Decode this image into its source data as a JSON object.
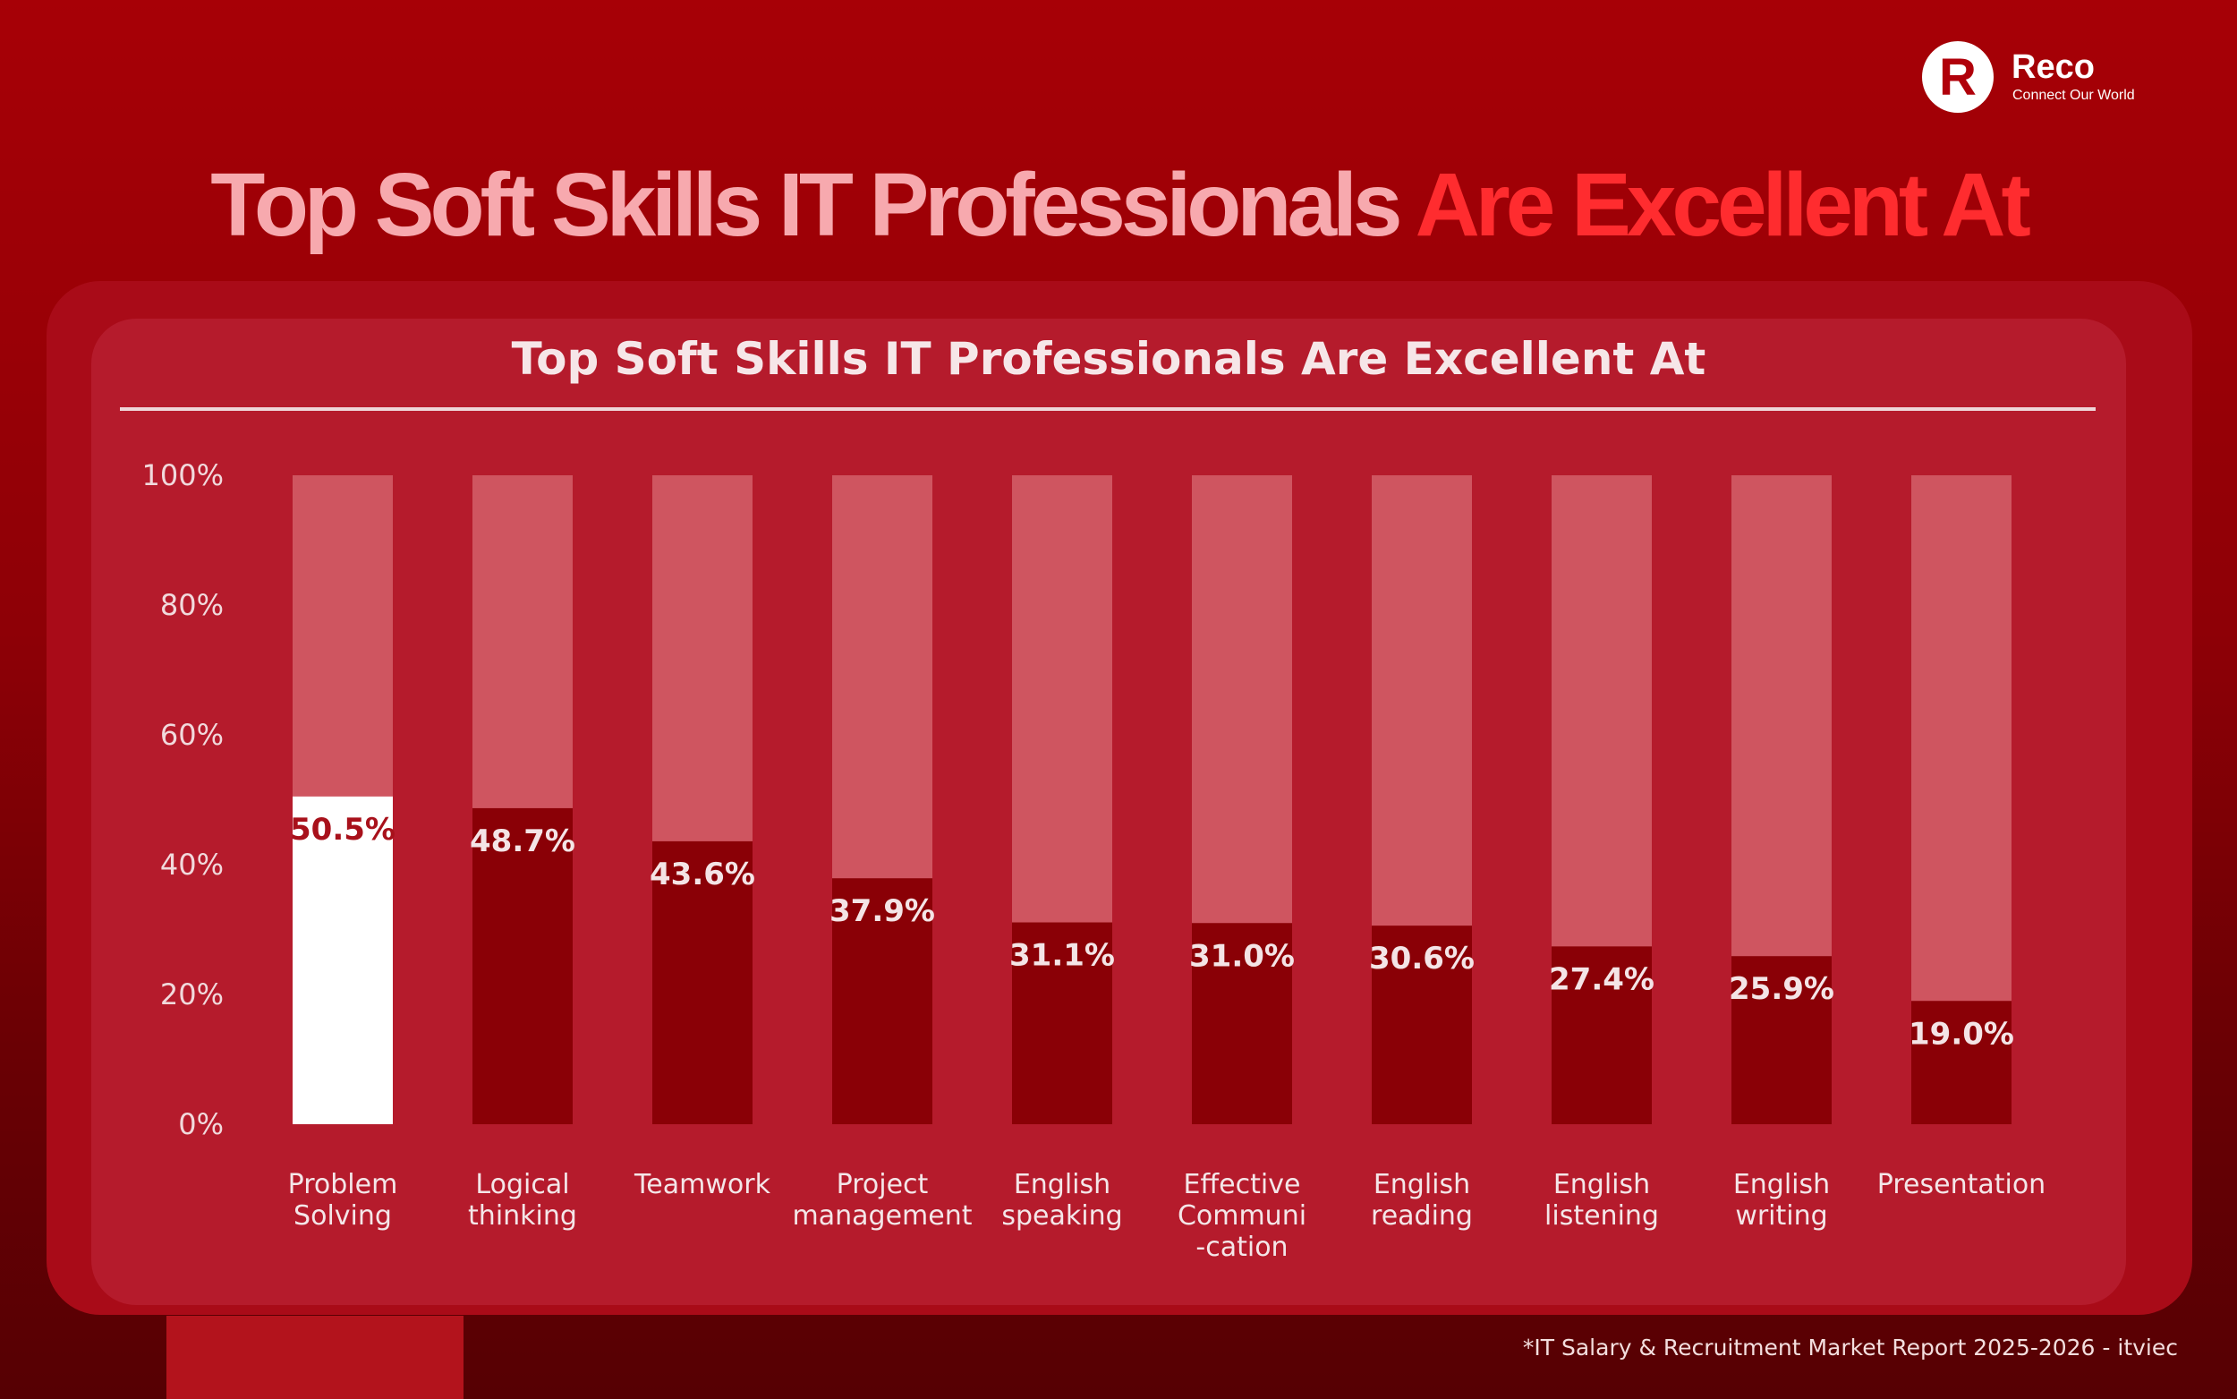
{
  "brand": {
    "mark": "R",
    "name": "Reco",
    "tagline": "Connect Our World"
  },
  "headline": {
    "part1": "Top Soft Skills IT Professionals",
    "part2": "Are Excellent At"
  },
  "footnote": "*IT Salary & Recruitment Market Report 2025-2026 - itviec",
  "colors": {
    "background": "#a70006",
    "panel": "#b51b2c",
    "bar_track": "#cf5560",
    "bar_fill": "#8a0006",
    "bar_highlight": "#ffffff"
  },
  "chart_data": {
    "type": "bar",
    "title": "Top Soft Skills IT Professionals Are Excellent At",
    "categories": [
      [
        "Problem",
        "Solving"
      ],
      [
        "Logical",
        "thinking"
      ],
      [
        "Teamwork"
      ],
      [
        "Project",
        "management"
      ],
      [
        "English",
        "speaking"
      ],
      [
        "Effective",
        "Communi",
        "-cation"
      ],
      [
        "English",
        "reading"
      ],
      [
        "English",
        "listening"
      ],
      [
        "English",
        "writing"
      ],
      [
        "Presentation"
      ]
    ],
    "values": [
      50.5,
      48.7,
      43.6,
      37.9,
      31.1,
      31.0,
      30.6,
      27.4,
      25.9,
      19.0
    ],
    "data_labels": [
      "50.5%",
      "48.7%",
      "43.6%",
      "37.9%",
      "31.1%",
      "31.0%",
      "30.6%",
      "27.4%",
      "25.9%",
      "19.0%"
    ],
    "highlight_index": 0,
    "ylim": [
      0,
      100
    ],
    "yticks": [
      0,
      20,
      40,
      60,
      80,
      100
    ],
    "ytick_labels": [
      "0%",
      "20%",
      "40%",
      "60%",
      "80%",
      "100%"
    ],
    "grid": false,
    "legend": "none"
  }
}
